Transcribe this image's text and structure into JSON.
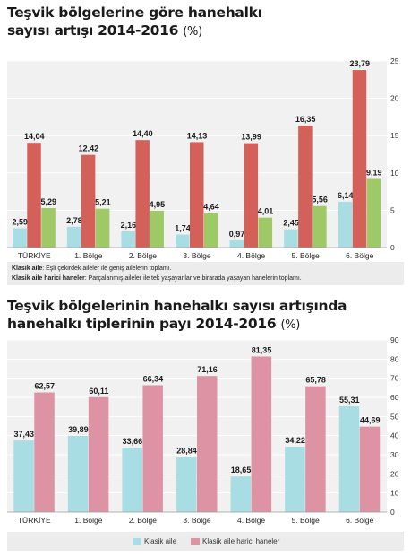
{
  "charts": [
    {
      "title": "Teşvik bölgelerine göre hanehalkı sayısı artışı 2014-2016",
      "title_line1": "Teşvik bölgelerine göre hanehalkı",
      "title_line2": "sayısı artışı 2014-2016",
      "unit": "(%)",
      "notes": [
        {
          "term": "Klasik aile",
          "text": ": Eşli çekirdek aileler ile geniş ailelerin toplamı."
        },
        {
          "term": "Klasik aile harici haneler",
          "text": ": Parçalanmış aileler ile tek yaşayanlar ve birarada yaşayan hanelerin toplamı."
        }
      ]
    },
    {
      "title": "Teşvik bölgelerinin hanehalkı sayısı artışında hanehalkı tiplerinin payı 2014-2016",
      "title_line1": "Teşvik bölgelerinin hanehalkı sayısı artışında",
      "title_line2": "hanehalkı tiplerinin payı 2014-2016",
      "unit": "(%)",
      "legend": [
        "Klasik aile",
        "Klasik aile harici haneler"
      ]
    }
  ],
  "chart_data": [
    {
      "type": "bar",
      "categories": [
        "TÜRKİYE",
        "1. Bölge",
        "2. Bölge",
        "3. Bölge",
        "4. Bölge",
        "5. Bölge",
        "6. Bölge"
      ],
      "series": [
        {
          "values": [
            2.59,
            2.78,
            2.16,
            1.74,
            0.97,
            2.45,
            6.14
          ],
          "labels": [
            "2,59",
            "2,78",
            "2,16",
            "1,74",
            "0,97",
            "2,45",
            "6,14"
          ],
          "color": "#a8dde3"
        },
        {
          "values": [
            14.04,
            12.42,
            14.4,
            14.13,
            13.99,
            16.35,
            23.79
          ],
          "labels": [
            "14,04",
            "12,42",
            "14,40",
            "14,13",
            "13,99",
            "16,35",
            "23,79"
          ],
          "color": "#d4605a"
        },
        {
          "values": [
            5.29,
            5.21,
            4.95,
            4.64,
            4.01,
            5.56,
            9.19
          ],
          "labels": [
            "5,29",
            "5,21",
            "4,95",
            "4,64",
            "4,01",
            "5,56",
            "9,19"
          ],
          "color": "#9fc967"
        }
      ],
      "title": "Teşvik bölgelerine göre hanehalkı sayısı artışı 2014-2016",
      "ylim": [
        0,
        25
      ],
      "yticks": [
        0,
        5,
        10,
        15,
        20,
        25
      ],
      "grid": true
    },
    {
      "type": "bar",
      "categories": [
        "TÜRKİYE",
        "1. Bölge",
        "2. Bölge",
        "3. Bölge",
        "4. Bölge",
        "5. Bölge",
        "6. Bölge"
      ],
      "series": [
        {
          "name": "Klasik aile",
          "values": [
            37.43,
            39.89,
            33.66,
            28.84,
            18.65,
            34.22,
            55.31
          ],
          "labels": [
            "37,43",
            "39,89",
            "33,66",
            "28,84",
            "18,65",
            "34,22",
            "55,31"
          ],
          "color": "#a8dde3"
        },
        {
          "name": "Klasik aile harici haneler",
          "values": [
            62.57,
            60.11,
            66.34,
            71.16,
            81.35,
            65.78,
            44.69
          ],
          "labels": [
            "62,57",
            "60,11",
            "66,34",
            "71,16",
            "81,35",
            "65,78",
            "44,69"
          ],
          "color": "#dd93a4"
        }
      ],
      "title": "Teşvik bölgelerinin hanehalkı sayısı artışında hanehalkı tiplerinin payı 2014-2016",
      "ylim": [
        0,
        90
      ],
      "yticks": [
        0,
        10,
        20,
        30,
        40,
        50,
        60,
        70,
        80,
        90
      ],
      "legend": "bottom",
      "grid": true
    }
  ]
}
